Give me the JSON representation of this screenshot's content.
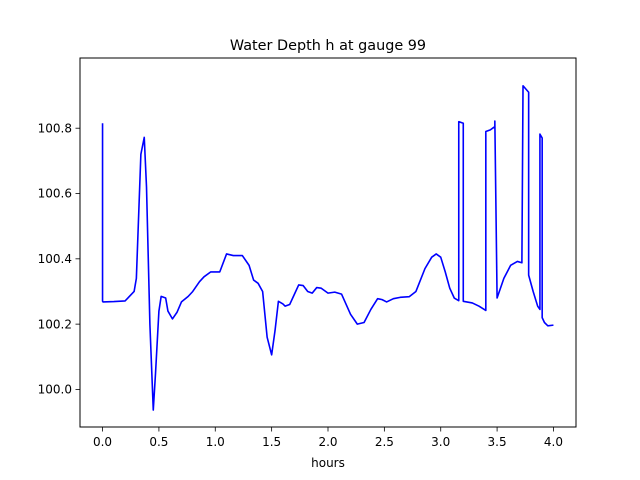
{
  "chart_data": {
    "type": "line",
    "title": "Water Depth h at gauge 99",
    "xlabel": "hours",
    "ylabel": "",
    "xlim": [
      -0.2,
      4.2
    ],
    "ylim": [
      99.885,
      101.015
    ],
    "x_ticks": [
      0.0,
      0.5,
      1.0,
      1.5,
      2.0,
      2.5,
      3.0,
      3.5,
      4.0
    ],
    "x_tick_labels": [
      "0.0",
      "0.5",
      "1.0",
      "1.5",
      "2.0",
      "2.5",
      "3.0",
      "3.5",
      "4.0"
    ],
    "y_ticks": [
      100.0,
      100.2,
      100.4,
      100.6,
      100.8
    ],
    "y_tick_labels": [
      "100.0",
      "100.2",
      "100.4",
      "100.6",
      "100.8"
    ],
    "grid": false,
    "legend": "none",
    "series": [
      {
        "color": "#0000ff",
        "x": [
          0.0,
          0.0,
          0.005,
          0.1,
          0.2,
          0.28,
          0.3,
          0.34,
          0.37,
          0.39,
          0.42,
          0.45,
          0.47,
          0.5,
          0.52,
          0.56,
          0.58,
          0.62,
          0.66,
          0.7,
          0.76,
          0.8,
          0.86,
          0.9,
          0.96,
          1.04,
          1.1,
          1.16,
          1.2,
          1.24,
          1.3,
          1.34,
          1.38,
          1.42,
          1.46,
          1.5,
          1.53,
          1.56,
          1.6,
          1.62,
          1.66,
          1.7,
          1.74,
          1.78,
          1.82,
          1.86,
          1.9,
          1.94,
          2.0,
          2.06,
          2.12,
          2.2,
          2.26,
          2.32,
          2.38,
          2.44,
          2.48,
          2.52,
          2.58,
          2.64,
          2.72,
          2.78,
          2.86,
          2.92,
          2.96,
          3.0,
          3.04,
          3.08,
          3.12,
          3.16,
          3.16,
          3.2,
          3.2,
          3.28,
          3.34,
          3.4,
          3.4,
          3.44,
          3.48,
          3.48,
          3.5,
          3.56,
          3.62,
          3.68,
          3.72,
          3.73,
          3.73,
          3.78,
          3.78,
          3.82,
          3.86,
          3.88,
          3.88,
          3.9,
          3.9,
          3.92,
          3.95,
          4.0
        ],
        "y": [
          100.815,
          100.27,
          100.268,
          100.269,
          100.271,
          100.3,
          100.34,
          100.72,
          100.772,
          100.62,
          100.2,
          99.937,
          100.05,
          100.24,
          100.285,
          100.28,
          100.24,
          100.216,
          100.236,
          100.268,
          100.285,
          100.3,
          100.33,
          100.345,
          100.36,
          100.36,
          100.415,
          100.41,
          100.41,
          100.41,
          100.38,
          100.335,
          100.325,
          100.3,
          100.16,
          100.106,
          100.18,
          100.27,
          100.262,
          100.255,
          100.26,
          100.29,
          100.32,
          100.318,
          100.3,
          100.295,
          100.312,
          100.31,
          100.295,
          100.298,
          100.292,
          100.23,
          100.2,
          100.205,
          100.245,
          100.278,
          100.275,
          100.268,
          100.278,
          100.282,
          100.284,
          100.3,
          100.37,
          100.405,
          100.415,
          100.405,
          100.36,
          100.31,
          100.28,
          100.272,
          100.82,
          100.815,
          100.27,
          100.265,
          100.255,
          100.242,
          100.79,
          100.795,
          100.805,
          100.822,
          100.28,
          100.34,
          100.38,
          100.392,
          100.388,
          100.93,
          100.93,
          100.91,
          100.35,
          100.3,
          100.255,
          100.245,
          100.782,
          100.77,
          100.22,
          100.205,
          100.195,
          100.197
        ]
      }
    ]
  }
}
